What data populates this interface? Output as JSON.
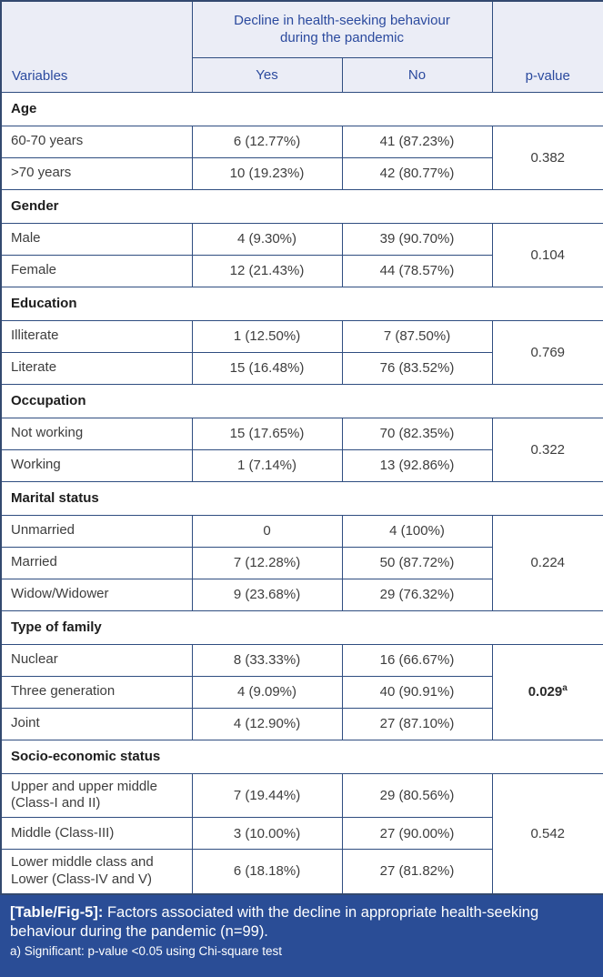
{
  "table": {
    "header": {
      "variables_label": "Variables",
      "span_label": "Decline in health-seeking behaviour during the pandemic",
      "yes_label": "Yes",
      "no_label": "No",
      "pvalue_label": "p-value"
    },
    "sections": [
      {
        "title": "Age",
        "rows": [
          {
            "label": "60-70 years",
            "yes": "6 (12.77%)",
            "no": "41 (87.23%)"
          },
          {
            "label": ">70 years",
            "yes": "10 (19.23%)",
            "no": "42 (80.77%)"
          }
        ],
        "p_value": "0.382",
        "significant": false
      },
      {
        "title": "Gender",
        "rows": [
          {
            "label": "Male",
            "yes": "4 (9.30%)",
            "no": "39 (90.70%)"
          },
          {
            "label": "Female",
            "yes": "12 (21.43%)",
            "no": "44 (78.57%)"
          }
        ],
        "p_value": "0.104",
        "significant": false
      },
      {
        "title": "Education",
        "rows": [
          {
            "label": "Illiterate",
            "yes": "1 (12.50%)",
            "no": "7 (87.50%)"
          },
          {
            "label": "Literate",
            "yes": "15 (16.48%)",
            "no": "76 (83.52%)"
          }
        ],
        "p_value": "0.769",
        "significant": false
      },
      {
        "title": "Occupation",
        "rows": [
          {
            "label": "Not working",
            "yes": "15 (17.65%)",
            "no": "70 (82.35%)"
          },
          {
            "label": "Working",
            "yes": "1 (7.14%)",
            "no": "13 (92.86%)"
          }
        ],
        "p_value": "0.322",
        "significant": false
      },
      {
        "title": "Marital status",
        "rows": [
          {
            "label": "Unmarried",
            "yes": "0",
            "no": "4 (100%)"
          },
          {
            "label": "Married",
            "yes": "7 (12.28%)",
            "no": "50 (87.72%)"
          },
          {
            "label": "Widow/Widower",
            "yes": "9 (23.68%)",
            "no": "29 (76.32%)"
          }
        ],
        "p_value": "0.224",
        "significant": false
      },
      {
        "title": "Type of family",
        "rows": [
          {
            "label": "Nuclear",
            "yes": "8 (33.33%)",
            "no": "16 (66.67%)"
          },
          {
            "label": "Three generation",
            "yes": "4 (9.09%)",
            "no": "40 (90.91%)"
          },
          {
            "label": "Joint",
            "yes": "4 (12.90%)",
            "no": "27 (87.10%)"
          }
        ],
        "p_value": "0.029",
        "p_value_superscript": "a",
        "significant": true
      },
      {
        "title": "Socio-economic status",
        "rows": [
          {
            "label": "Upper and upper middle (Class-I and II)",
            "yes": "7 (19.44%)",
            "no": "29 (80.56%)"
          },
          {
            "label": "Middle (Class-III)",
            "yes": "3 (10.00%)",
            "no": "27 (90.00%)"
          },
          {
            "label": "Lower middle class and Lower (Class-IV and V)",
            "yes": "6 (18.18%)",
            "no": "27 (81.82%)"
          }
        ],
        "p_value": "0.542",
        "significant": false
      }
    ]
  },
  "footer": {
    "caption_tag": "[Table/Fig-5]:",
    "caption_text": "Factors associated with the decline in appropriate health-seeking behaviour during the pandemic (n=99).",
    "footnote": "a) Significant: p-value <0.05 using Chi-square test"
  },
  "colors": {
    "header_bg": "#ebedf6",
    "header_text": "#2b4a9e",
    "inner_border": "#2f4d80",
    "outer_border": "#33496f",
    "body_text": "#3d3d3d",
    "section_text": "#1d1d1d",
    "footer_bg": "#2a4d96",
    "footer_text": "#ffffff"
  }
}
